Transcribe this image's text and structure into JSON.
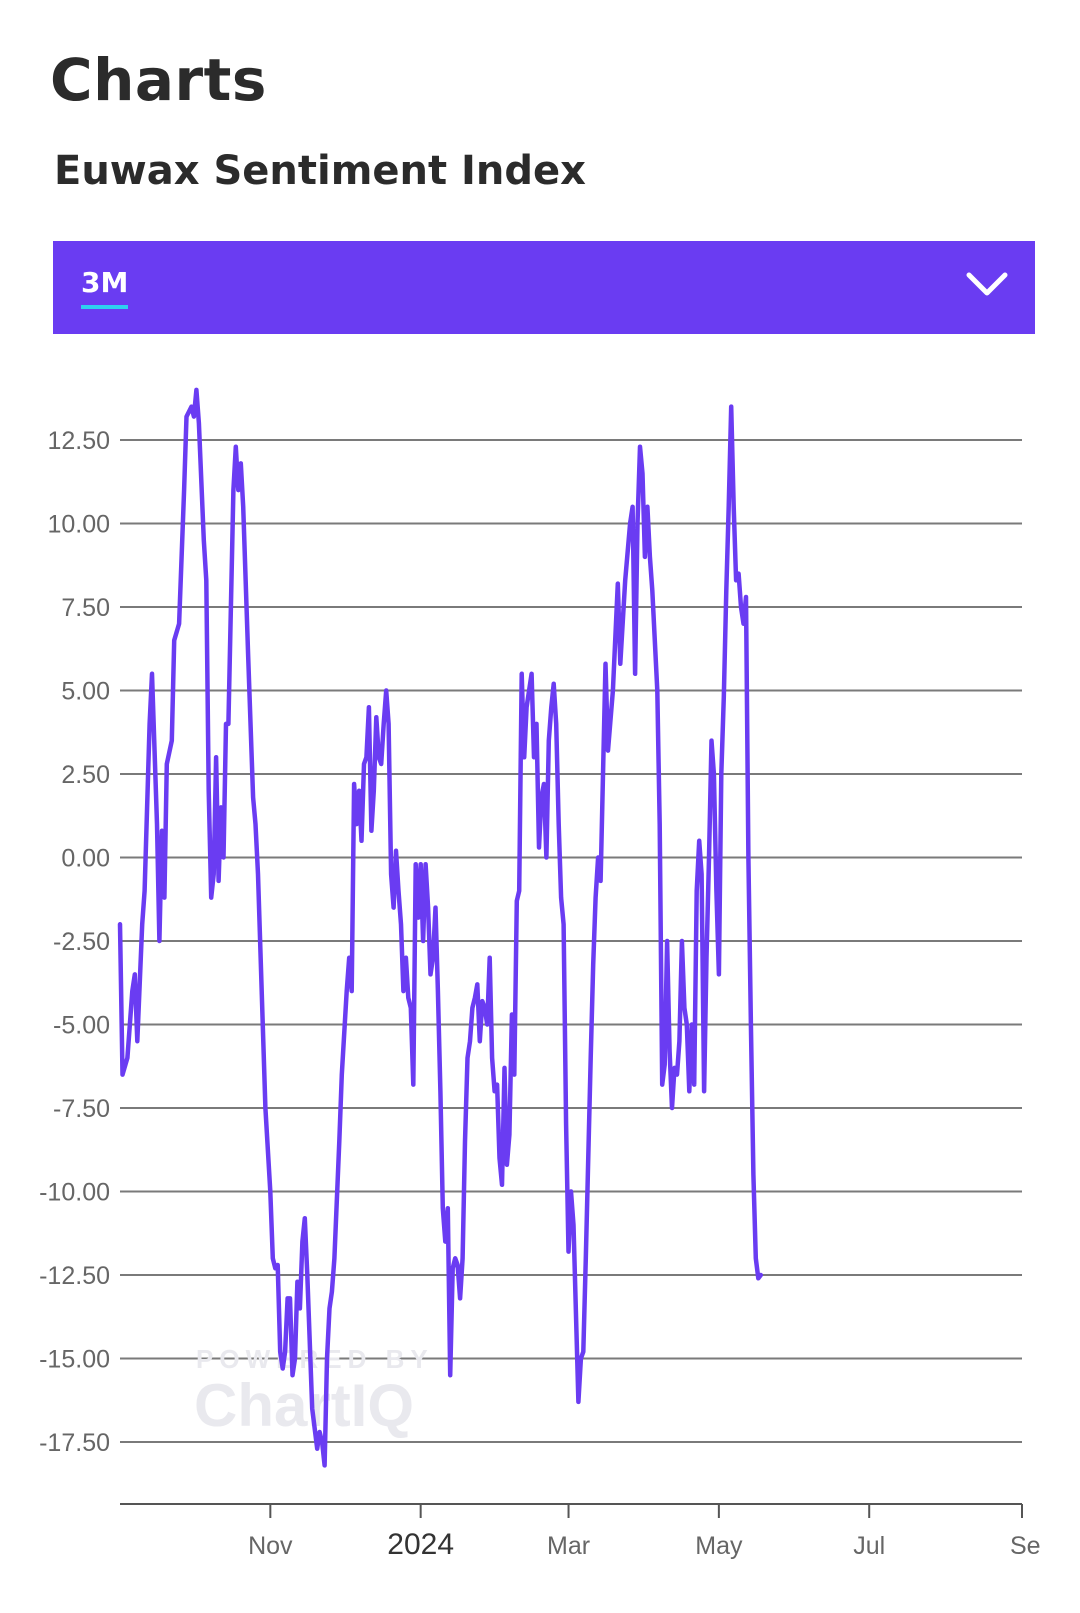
{
  "header": {
    "title": "Charts",
    "subtitle": "Euwax Sentiment Index"
  },
  "range_selector": {
    "selected": "3M",
    "chevron_icon": "chevron-down-icon"
  },
  "colors": {
    "accent": "#6a3cf2",
    "underline": "#2ed0f0",
    "line": "#6a3cf2",
    "grid": "#7a7a7a"
  },
  "watermark": {
    "top": "POWERED BY",
    "bottom": "ChartIQ"
  },
  "chart_data": {
    "type": "line",
    "ylim": [
      -19,
      14
    ],
    "xlim": [
      "2023-09-01",
      "2024-09-01"
    ],
    "grid": true,
    "y_ticks": [
      12.5,
      10,
      7.5,
      5,
      2.5,
      0,
      -2.5,
      -5,
      -7.5,
      -10,
      -12.5,
      -15,
      -17.5
    ],
    "y_tick_labels": [
      "12.50",
      "10.00",
      "7.50",
      "5.00",
      "2.50",
      "0.00",
      "-2.50",
      "-5.00",
      "-7.50",
      "-10.00",
      "-12.50",
      "-15.00",
      "-17.50"
    ],
    "x_ticks": [
      {
        "label": "Nov",
        "date": "2023-11-01",
        "bold": false
      },
      {
        "label": "2024",
        "date": "2024-01-01",
        "bold": true
      },
      {
        "label": "Mar",
        "date": "2024-03-01",
        "bold": false
      },
      {
        "label": "May",
        "date": "2024-05-01",
        "bold": false
      },
      {
        "label": "Jul",
        "date": "2024-07-01",
        "bold": false
      },
      {
        "label": "Se",
        "date": "2024-09-01",
        "bold": false
      }
    ],
    "series": [
      {
        "points": [
          [
            "2023-09-01",
            -2
          ],
          [
            "2023-09-02",
            -6.5
          ],
          [
            "2023-09-04",
            -6
          ],
          [
            "2023-09-06",
            -4
          ],
          [
            "2023-09-07",
            -3.5
          ],
          [
            "2023-09-08",
            -5.5
          ],
          [
            "2023-09-10",
            -2
          ],
          [
            "2023-09-11",
            -1
          ],
          [
            "2023-09-13",
            4
          ],
          [
            "2023-09-14",
            5.5
          ],
          [
            "2023-09-16",
            1
          ],
          [
            "2023-09-17",
            -2.5
          ],
          [
            "2023-09-18",
            0.8
          ],
          [
            "2023-09-19",
            -1.2
          ],
          [
            "2023-09-20",
            2.8
          ],
          [
            "2023-09-22",
            3.5
          ],
          [
            "2023-09-23",
            6.5
          ],
          [
            "2023-09-25",
            7
          ],
          [
            "2023-09-27",
            11
          ],
          [
            "2023-09-28",
            13.2
          ],
          [
            "2023-09-30",
            13.5
          ],
          [
            "2023-10-01",
            13.2
          ],
          [
            "2023-10-02",
            14
          ],
          [
            "2023-10-03",
            13
          ],
          [
            "2023-10-05",
            9.5
          ],
          [
            "2023-10-06",
            8.3
          ],
          [
            "2023-10-07",
            2
          ],
          [
            "2023-10-08",
            -1.2
          ],
          [
            "2023-10-09",
            -0.5
          ],
          [
            "2023-10-10",
            3
          ],
          [
            "2023-10-11",
            -0.7
          ],
          [
            "2023-10-12",
            1.5
          ],
          [
            "2023-10-13",
            0
          ],
          [
            "2023-10-14",
            4
          ],
          [
            "2023-10-15",
            4
          ],
          [
            "2023-10-17",
            11
          ],
          [
            "2023-10-18",
            12.3
          ],
          [
            "2023-10-19",
            11
          ],
          [
            "2023-10-20",
            11.8
          ],
          [
            "2023-10-21",
            10.5
          ],
          [
            "2023-10-23",
            6
          ],
          [
            "2023-10-25",
            1.8
          ],
          [
            "2023-10-26",
            1
          ],
          [
            "2023-10-27",
            -0.5
          ],
          [
            "2023-10-30",
            -7.5
          ],
          [
            "2023-11-01",
            -10
          ],
          [
            "2023-11-02",
            -12
          ],
          [
            "2023-11-03",
            -12.3
          ],
          [
            "2023-11-04",
            -12.2
          ],
          [
            "2023-11-05",
            -14.8
          ],
          [
            "2023-11-06",
            -15.3
          ],
          [
            "2023-11-07",
            -14.8
          ],
          [
            "2023-11-08",
            -13.2
          ],
          [
            "2023-11-09",
            -13.2
          ],
          [
            "2023-11-10",
            -15.5
          ],
          [
            "2023-11-11",
            -15
          ],
          [
            "2023-11-12",
            -12.7
          ],
          [
            "2023-11-13",
            -13.5
          ],
          [
            "2023-11-14",
            -11.5
          ],
          [
            "2023-11-15",
            -10.8
          ],
          [
            "2023-11-16",
            -12.5
          ],
          [
            "2023-11-18",
            -16.5
          ],
          [
            "2023-11-20",
            -17.7
          ],
          [
            "2023-11-21",
            -17.2
          ],
          [
            "2023-11-22",
            -17.5
          ],
          [
            "2023-11-23",
            -18.2
          ],
          [
            "2023-11-24",
            -15
          ],
          [
            "2023-11-25",
            -13.5
          ],
          [
            "2023-11-26",
            -13
          ],
          [
            "2023-11-27",
            -12
          ],
          [
            "2023-11-29",
            -8.5
          ],
          [
            "2023-11-30",
            -6.5
          ],
          [
            "2023-12-02",
            -4
          ],
          [
            "2023-12-03",
            -3
          ],
          [
            "2023-12-04",
            -4
          ],
          [
            "2023-12-05",
            2.2
          ],
          [
            "2023-12-06",
            1
          ],
          [
            "2023-12-07",
            2
          ],
          [
            "2023-12-08",
            0.5
          ],
          [
            "2023-12-09",
            2.8
          ],
          [
            "2023-12-10",
            3
          ],
          [
            "2023-12-11",
            4.5
          ],
          [
            "2023-12-12",
            0.8
          ],
          [
            "2023-12-13",
            2
          ],
          [
            "2023-12-14",
            4.2
          ],
          [
            "2023-12-15",
            3
          ],
          [
            "2023-12-16",
            2.8
          ],
          [
            "2023-12-17",
            4
          ],
          [
            "2023-12-18",
            5
          ],
          [
            "2023-12-19",
            4
          ],
          [
            "2023-12-20",
            -0.5
          ],
          [
            "2023-12-21",
            -1.5
          ],
          [
            "2023-12-22",
            0.2
          ],
          [
            "2023-12-23",
            -1
          ],
          [
            "2023-12-24",
            -2
          ],
          [
            "2023-12-25",
            -4
          ],
          [
            "2023-12-26",
            -3
          ],
          [
            "2023-12-27",
            -4.2
          ],
          [
            "2023-12-28",
            -4.5
          ],
          [
            "2023-12-29",
            -6.8
          ],
          [
            "2023-12-30",
            -0.2
          ],
          [
            "2023-12-31",
            -1.8
          ],
          [
            "2024-01-01",
            -0.2
          ],
          [
            "2024-01-02",
            -2.5
          ],
          [
            "2024-01-03",
            -0.2
          ],
          [
            "2024-01-04",
            -1.5
          ],
          [
            "2024-01-05",
            -3.5
          ],
          [
            "2024-01-06",
            -3
          ],
          [
            "2024-01-07",
            -1.5
          ],
          [
            "2024-01-08",
            -4
          ],
          [
            "2024-01-09",
            -7
          ],
          [
            "2024-01-10",
            -10.5
          ],
          [
            "2024-01-11",
            -11.5
          ],
          [
            "2024-01-12",
            -10.5
          ],
          [
            "2024-01-13",
            -15.5
          ],
          [
            "2024-01-14",
            -12.3
          ],
          [
            "2024-01-15",
            -12
          ],
          [
            "2024-01-16",
            -12.2
          ],
          [
            "2024-01-17",
            -13.2
          ],
          [
            "2024-01-18",
            -12
          ],
          [
            "2024-01-19",
            -8.5
          ],
          [
            "2024-01-20",
            -6
          ],
          [
            "2024-01-21",
            -5.5
          ],
          [
            "2024-01-22",
            -4.5
          ],
          [
            "2024-01-23",
            -4.2
          ],
          [
            "2024-01-24",
            -3.8
          ],
          [
            "2024-01-25",
            -5.5
          ],
          [
            "2024-01-26",
            -4.3
          ],
          [
            "2024-01-27",
            -4.5
          ],
          [
            "2024-01-28",
            -5
          ],
          [
            "2024-01-29",
            -3
          ],
          [
            "2024-01-30",
            -6
          ],
          [
            "2024-01-31",
            -7
          ],
          [
            "2024-02-01",
            -6.8
          ],
          [
            "2024-02-02",
            -9
          ],
          [
            "2024-02-03",
            -9.8
          ],
          [
            "2024-02-04",
            -6.3
          ],
          [
            "2024-02-05",
            -9.2
          ],
          [
            "2024-02-06",
            -8.3
          ],
          [
            "2024-02-07",
            -4.7
          ],
          [
            "2024-02-08",
            -6.5
          ],
          [
            "2024-02-09",
            -1.3
          ],
          [
            "2024-02-10",
            -1
          ],
          [
            "2024-02-11",
            5.5
          ],
          [
            "2024-02-12",
            3
          ],
          [
            "2024-02-13",
            4.5
          ],
          [
            "2024-02-14",
            5
          ],
          [
            "2024-02-15",
            5.5
          ],
          [
            "2024-02-16",
            3
          ],
          [
            "2024-02-17",
            4
          ],
          [
            "2024-02-18",
            0.3
          ],
          [
            "2024-02-19",
            1.8
          ],
          [
            "2024-02-20",
            2.2
          ],
          [
            "2024-02-21",
            0
          ],
          [
            "2024-02-22",
            3.5
          ],
          [
            "2024-02-23",
            4.5
          ],
          [
            "2024-02-24",
            5.2
          ],
          [
            "2024-02-25",
            4
          ],
          [
            "2024-02-26",
            1
          ],
          [
            "2024-02-27",
            -1.2
          ],
          [
            "2024-02-28",
            -2
          ],
          [
            "2024-02-29",
            -8
          ],
          [
            "2024-03-01",
            -11.8
          ],
          [
            "2024-03-02",
            -10
          ],
          [
            "2024-03-03",
            -11
          ],
          [
            "2024-03-05",
            -16.3
          ],
          [
            "2024-03-06",
            -15
          ],
          [
            "2024-03-07",
            -14.8
          ],
          [
            "2024-03-08",
            -12
          ],
          [
            "2024-03-10",
            -6
          ],
          [
            "2024-03-11",
            -3.2
          ],
          [
            "2024-03-12",
            -1.2
          ],
          [
            "2024-03-13",
            0
          ],
          [
            "2024-03-14",
            -0.7
          ],
          [
            "2024-03-16",
            5.8
          ],
          [
            "2024-03-17",
            3.2
          ],
          [
            "2024-03-19",
            5
          ],
          [
            "2024-03-21",
            8.2
          ],
          [
            "2024-03-22",
            5.8
          ],
          [
            "2024-03-24",
            8.3
          ],
          [
            "2024-03-26",
            10
          ],
          [
            "2024-03-27",
            10.5
          ],
          [
            "2024-03-28",
            5.5
          ],
          [
            "2024-03-29",
            10
          ],
          [
            "2024-03-30",
            12.3
          ],
          [
            "2024-03-31",
            11.5
          ],
          [
            "2024-04-01",
            9
          ],
          [
            "2024-04-02",
            10.5
          ],
          [
            "2024-04-03",
            9
          ],
          [
            "2024-04-04",
            8
          ],
          [
            "2024-04-06",
            5
          ],
          [
            "2024-04-07",
            1
          ],
          [
            "2024-04-08",
            -6.8
          ],
          [
            "2024-04-09",
            -6.2
          ],
          [
            "2024-04-10",
            -2.5
          ],
          [
            "2024-04-11",
            -5.8
          ],
          [
            "2024-04-12",
            -7.5
          ],
          [
            "2024-04-13",
            -6.3
          ],
          [
            "2024-04-14",
            -6.5
          ],
          [
            "2024-04-15",
            -5.5
          ],
          [
            "2024-04-16",
            -2.5
          ],
          [
            "2024-04-17",
            -4.5
          ],
          [
            "2024-04-18",
            -5
          ],
          [
            "2024-04-19",
            -7
          ],
          [
            "2024-04-20",
            -5
          ],
          [
            "2024-04-21",
            -6.8
          ],
          [
            "2024-04-22",
            -1
          ],
          [
            "2024-04-23",
            0.5
          ],
          [
            "2024-04-24",
            -0.5
          ],
          [
            "2024-04-25",
            -7
          ],
          [
            "2024-04-26",
            -3
          ],
          [
            "2024-04-27",
            0
          ],
          [
            "2024-04-28",
            3.5
          ],
          [
            "2024-04-29",
            2.5
          ],
          [
            "2024-04-30",
            -1
          ],
          [
            "2024-05-01",
            -3.5
          ],
          [
            "2024-05-02",
            2.5
          ],
          [
            "2024-05-03",
            4.8
          ],
          [
            "2024-05-04",
            8
          ],
          [
            "2024-05-05",
            10.5
          ],
          [
            "2024-05-06",
            13.5
          ],
          [
            "2024-05-07",
            10.5
          ],
          [
            "2024-05-08",
            8.3
          ],
          [
            "2024-05-09",
            8.5
          ],
          [
            "2024-05-10",
            7.5
          ],
          [
            "2024-05-11",
            7
          ],
          [
            "2024-05-12",
            7.8
          ],
          [
            "2024-05-13",
            0
          ],
          [
            "2024-05-14",
            -5
          ],
          [
            "2024-05-15",
            -9.5
          ],
          [
            "2024-05-16",
            -12
          ],
          [
            "2024-05-17",
            -12.6
          ],
          [
            "2024-05-18",
            -12.5
          ]
        ]
      }
    ]
  }
}
